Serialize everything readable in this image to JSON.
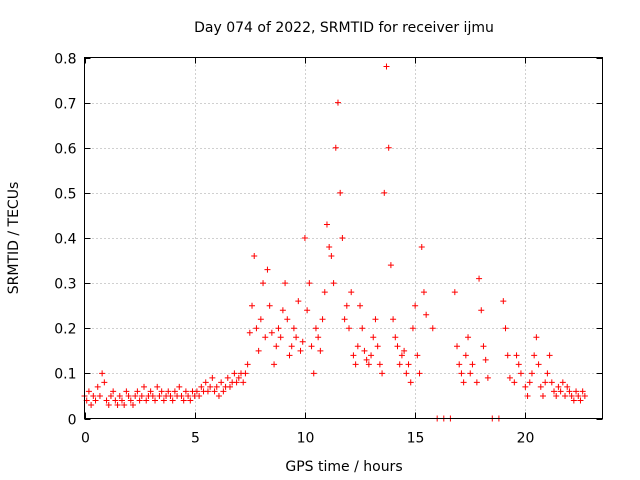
{
  "chart_data": {
    "type": "scatter",
    "title": "Day 074 of 2022, SRMTID for receiver ijmu",
    "xlabel": "GPS time / hours",
    "ylabel": "SRMTID / TECUs",
    "xlim": [
      0,
      23.5
    ],
    "ylim": [
      0,
      0.8
    ],
    "xticks": [
      0,
      5,
      10,
      15,
      20
    ],
    "yticks": [
      0,
      0.1,
      0.2,
      0.3,
      0.4,
      0.5,
      0.6,
      0.7,
      0.8
    ],
    "xtick_labels": [
      "0",
      "5",
      "10",
      "15",
      "20"
    ],
    "ytick_labels": [
      "0",
      "0.1",
      "0.2",
      "0.3",
      "0.4",
      "0.5",
      "0.6",
      "0.7",
      "0.8"
    ],
    "grid": true,
    "marker": "+",
    "color": "#ff0000",
    "series": [
      {
        "name": "SRMTID",
        "points": [
          [
            0.0,
            0.05
          ],
          [
            0.1,
            0.04
          ],
          [
            0.2,
            0.06
          ],
          [
            0.3,
            0.03
          ],
          [
            0.4,
            0.05
          ],
          [
            0.5,
            0.04
          ],
          [
            0.6,
            0.07
          ],
          [
            0.7,
            0.05
          ],
          [
            0.8,
            0.1
          ],
          [
            0.9,
            0.08
          ],
          [
            1.0,
            0.04
          ],
          [
            1.1,
            0.03
          ],
          [
            1.2,
            0.05
          ],
          [
            1.3,
            0.06
          ],
          [
            1.4,
            0.04
          ],
          [
            1.5,
            0.03
          ],
          [
            1.6,
            0.05
          ],
          [
            1.7,
            0.04
          ],
          [
            1.8,
            0.03
          ],
          [
            1.9,
            0.06
          ],
          [
            2.0,
            0.05
          ],
          [
            2.1,
            0.04
          ],
          [
            2.2,
            0.03
          ],
          [
            2.3,
            0.05
          ],
          [
            2.4,
            0.06
          ],
          [
            2.5,
            0.04
          ],
          [
            2.6,
            0.05
          ],
          [
            2.7,
            0.07
          ],
          [
            2.8,
            0.04
          ],
          [
            2.9,
            0.05
          ],
          [
            3.0,
            0.06
          ],
          [
            3.1,
            0.05
          ],
          [
            3.2,
            0.04
          ],
          [
            3.3,
            0.07
          ],
          [
            3.4,
            0.05
          ],
          [
            3.5,
            0.06
          ],
          [
            3.6,
            0.04
          ],
          [
            3.7,
            0.05
          ],
          [
            3.8,
            0.06
          ],
          [
            3.9,
            0.05
          ],
          [
            4.0,
            0.04
          ],
          [
            4.1,
            0.06
          ],
          [
            4.2,
            0.05
          ],
          [
            4.3,
            0.07
          ],
          [
            4.4,
            0.05
          ],
          [
            4.5,
            0.04
          ],
          [
            4.6,
            0.06
          ],
          [
            4.7,
            0.05
          ],
          [
            4.8,
            0.04
          ],
          [
            4.9,
            0.06
          ],
          [
            5.0,
            0.05
          ],
          [
            5.1,
            0.06
          ],
          [
            5.2,
            0.05
          ],
          [
            5.3,
            0.07
          ],
          [
            5.4,
            0.06
          ],
          [
            5.5,
            0.08
          ],
          [
            5.6,
            0.06
          ],
          [
            5.7,
            0.07
          ],
          [
            5.8,
            0.09
          ],
          [
            5.9,
            0.06
          ],
          [
            6.0,
            0.07
          ],
          [
            6.1,
            0.05
          ],
          [
            6.2,
            0.08
          ],
          [
            6.3,
            0.06
          ],
          [
            6.4,
            0.07
          ],
          [
            6.5,
            0.09
          ],
          [
            6.6,
            0.07
          ],
          [
            6.7,
            0.08
          ],
          [
            6.8,
            0.1
          ],
          [
            6.9,
            0.08
          ],
          [
            7.0,
            0.09
          ],
          [
            7.1,
            0.1
          ],
          [
            7.2,
            0.08
          ],
          [
            7.3,
            0.1
          ],
          [
            7.4,
            0.12
          ],
          [
            7.5,
            0.19
          ],
          [
            7.6,
            0.25
          ],
          [
            7.7,
            0.36
          ],
          [
            7.8,
            0.2
          ],
          [
            7.9,
            0.15
          ],
          [
            8.0,
            0.22
          ],
          [
            8.1,
            0.3
          ],
          [
            8.2,
            0.18
          ],
          [
            8.3,
            0.33
          ],
          [
            8.4,
            0.25
          ],
          [
            8.5,
            0.19
          ],
          [
            8.6,
            0.12
          ],
          [
            8.7,
            0.16
          ],
          [
            8.8,
            0.2
          ],
          [
            8.9,
            0.18
          ],
          [
            9.0,
            0.24
          ],
          [
            9.1,
            0.3
          ],
          [
            9.2,
            0.22
          ],
          [
            9.3,
            0.14
          ],
          [
            9.4,
            0.16
          ],
          [
            9.5,
            0.2
          ],
          [
            9.6,
            0.18
          ],
          [
            9.7,
            0.26
          ],
          [
            9.8,
            0.15
          ],
          [
            9.9,
            0.17
          ],
          [
            10.0,
            0.4
          ],
          [
            10.1,
            0.24
          ],
          [
            10.2,
            0.3
          ],
          [
            10.3,
            0.16
          ],
          [
            10.4,
            0.1
          ],
          [
            10.5,
            0.2
          ],
          [
            10.6,
            0.18
          ],
          [
            10.7,
            0.15
          ],
          [
            10.8,
            0.22
          ],
          [
            10.9,
            0.28
          ],
          [
            11.0,
            0.43
          ],
          [
            11.1,
            0.38
          ],
          [
            11.2,
            0.36
          ],
          [
            11.3,
            0.3
          ],
          [
            11.4,
            0.6
          ],
          [
            11.5,
            0.7
          ],
          [
            11.6,
            0.5
          ],
          [
            11.7,
            0.4
          ],
          [
            11.8,
            0.22
          ],
          [
            11.9,
            0.25
          ],
          [
            12.0,
            0.2
          ],
          [
            12.1,
            0.28
          ],
          [
            12.2,
            0.14
          ],
          [
            12.3,
            0.12
          ],
          [
            12.4,
            0.16
          ],
          [
            12.5,
            0.25
          ],
          [
            12.6,
            0.2
          ],
          [
            12.7,
            0.15
          ],
          [
            12.8,
            0.13
          ],
          [
            12.9,
            0.12
          ],
          [
            13.0,
            0.14
          ],
          [
            13.1,
            0.18
          ],
          [
            13.2,
            0.22
          ],
          [
            13.3,
            0.16
          ],
          [
            13.4,
            0.12
          ],
          [
            13.5,
            0.1
          ],
          [
            13.6,
            0.5
          ],
          [
            13.7,
            0.78
          ],
          [
            13.8,
            0.6
          ],
          [
            13.9,
            0.34
          ],
          [
            14.0,
            0.22
          ],
          [
            14.1,
            0.18
          ],
          [
            14.2,
            0.16
          ],
          [
            14.3,
            0.12
          ],
          [
            14.4,
            0.14
          ],
          [
            14.5,
            0.15
          ],
          [
            14.6,
            0.1
          ],
          [
            14.7,
            0.12
          ],
          [
            14.8,
            0.08
          ],
          [
            14.9,
            0.2
          ],
          [
            15.0,
            0.25
          ],
          [
            15.1,
            0.14
          ],
          [
            15.2,
            0.1
          ],
          [
            15.3,
            0.38
          ],
          [
            15.4,
            0.28
          ],
          [
            15.5,
            0.23
          ],
          [
            15.8,
            0.2
          ],
          [
            16.0,
            0.0
          ],
          [
            16.3,
            0.0
          ],
          [
            16.6,
            0.0
          ],
          [
            16.8,
            0.28
          ],
          [
            16.9,
            0.16
          ],
          [
            17.0,
            0.12
          ],
          [
            17.1,
            0.1
          ],
          [
            17.2,
            0.08
          ],
          [
            17.3,
            0.14
          ],
          [
            17.4,
            0.18
          ],
          [
            17.5,
            0.1
          ],
          [
            17.6,
            0.12
          ],
          [
            17.8,
            0.08
          ],
          [
            17.9,
            0.31
          ],
          [
            18.0,
            0.24
          ],
          [
            18.1,
            0.16
          ],
          [
            18.2,
            0.13
          ],
          [
            18.3,
            0.09
          ],
          [
            18.5,
            0.0
          ],
          [
            18.8,
            0.0
          ],
          [
            19.0,
            0.26
          ],
          [
            19.1,
            0.2
          ],
          [
            19.2,
            0.14
          ],
          [
            19.3,
            0.09
          ],
          [
            19.5,
            0.08
          ],
          [
            19.6,
            0.14
          ],
          [
            19.7,
            0.12
          ],
          [
            19.8,
            0.1
          ],
          [
            20.0,
            0.07
          ],
          [
            20.1,
            0.05
          ],
          [
            20.2,
            0.08
          ],
          [
            20.3,
            0.1
          ],
          [
            20.4,
            0.14
          ],
          [
            20.5,
            0.18
          ],
          [
            20.6,
            0.12
          ],
          [
            20.7,
            0.07
          ],
          [
            20.8,
            0.05
          ],
          [
            20.9,
            0.08
          ],
          [
            21.0,
            0.1
          ],
          [
            21.1,
            0.14
          ],
          [
            21.2,
            0.08
          ],
          [
            21.3,
            0.06
          ],
          [
            21.4,
            0.05
          ],
          [
            21.5,
            0.07
          ],
          [
            21.6,
            0.06
          ],
          [
            21.7,
            0.08
          ],
          [
            21.8,
            0.05
          ],
          [
            21.9,
            0.07
          ],
          [
            22.0,
            0.06
          ],
          [
            22.1,
            0.05
          ],
          [
            22.2,
            0.04
          ],
          [
            22.3,
            0.06
          ],
          [
            22.4,
            0.05
          ],
          [
            22.5,
            0.04
          ],
          [
            22.6,
            0.06
          ],
          [
            22.7,
            0.05
          ]
        ]
      }
    ]
  }
}
